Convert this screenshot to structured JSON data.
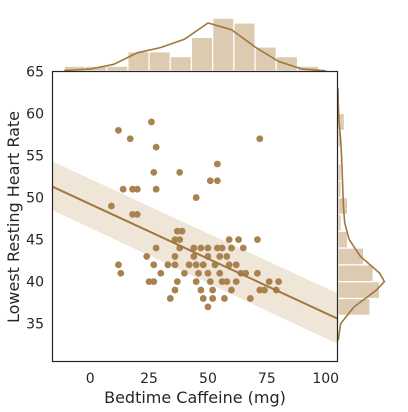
{
  "chart_data": {
    "type": "scatter",
    "kind": "jointplot with regression line, confidence band, marginal histograms and KDE curves",
    "xlabel": "Bedtime Caffeine (mg)",
    "ylabel": "Lowest Resting Heart Rate",
    "xlim": [
      -16,
      105
    ],
    "ylim": [
      30.5,
      65
    ],
    "xticks": [
      0,
      25,
      50,
      75,
      100
    ],
    "yticks": [
      35,
      40,
      45,
      50,
      55,
      60,
      65
    ],
    "grid": false,
    "colors": {
      "points": "#a8834f",
      "line": "#a0773f",
      "band": "#efe6d8",
      "hist": "#dccbb0",
      "axis": "#262626"
    },
    "points": [
      {
        "x": 12,
        "y": 58
      },
      {
        "x": 26,
        "y": 59
      },
      {
        "x": 17,
        "y": 57
      },
      {
        "x": 28,
        "y": 56
      },
      {
        "x": 72,
        "y": 57
      },
      {
        "x": 54,
        "y": 54
      },
      {
        "x": 54,
        "y": 52
      },
      {
        "x": 27,
        "y": 53
      },
      {
        "x": 38,
        "y": 53
      },
      {
        "x": 51,
        "y": 52
      },
      {
        "x": 14,
        "y": 51
      },
      {
        "x": 18,
        "y": 51
      },
      {
        "x": 20,
        "y": 51
      },
      {
        "x": 28,
        "y": 51
      },
      {
        "x": 45,
        "y": 50
      },
      {
        "x": 9,
        "y": 49
      },
      {
        "x": 18,
        "y": 48
      },
      {
        "x": 20,
        "y": 48
      },
      {
        "x": 37,
        "y": 46
      },
      {
        "x": 39,
        "y": 46
      },
      {
        "x": 36,
        "y": 45
      },
      {
        "x": 38,
        "y": 45
      },
      {
        "x": 59,
        "y": 45
      },
      {
        "x": 63,
        "y": 45
      },
      {
        "x": 71,
        "y": 45
      },
      {
        "x": 28,
        "y": 44
      },
      {
        "x": 38,
        "y": 44
      },
      {
        "x": 44,
        "y": 44
      },
      {
        "x": 47,
        "y": 44
      },
      {
        "x": 50,
        "y": 44
      },
      {
        "x": 54,
        "y": 44
      },
      {
        "x": 56,
        "y": 44
      },
      {
        "x": 60,
        "y": 44
      },
      {
        "x": 65,
        "y": 44
      },
      {
        "x": 24,
        "y": 43
      },
      {
        "x": 36,
        "y": 43
      },
      {
        "x": 44,
        "y": 43
      },
      {
        "x": 50,
        "y": 43
      },
      {
        "x": 55,
        "y": 43
      },
      {
        "x": 58,
        "y": 43
      },
      {
        "x": 27,
        "y": 42
      },
      {
        "x": 33,
        "y": 42
      },
      {
        "x": 36,
        "y": 42
      },
      {
        "x": 42,
        "y": 42
      },
      {
        "x": 45,
        "y": 42
      },
      {
        "x": 48,
        "y": 42
      },
      {
        "x": 53,
        "y": 42
      },
      {
        "x": 59,
        "y": 42
      },
      {
        "x": 62,
        "y": 42
      },
      {
        "x": 12,
        "y": 42
      },
      {
        "x": 13,
        "y": 41
      },
      {
        "x": 30,
        "y": 41
      },
      {
        "x": 40,
        "y": 41
      },
      {
        "x": 46,
        "y": 41
      },
      {
        "x": 50,
        "y": 41
      },
      {
        "x": 55,
        "y": 41
      },
      {
        "x": 64,
        "y": 41
      },
      {
        "x": 66,
        "y": 41
      },
      {
        "x": 71,
        "y": 41
      },
      {
        "x": 25,
        "y": 40
      },
      {
        "x": 27,
        "y": 40
      },
      {
        "x": 37,
        "y": 40
      },
      {
        "x": 45,
        "y": 40
      },
      {
        "x": 51,
        "y": 40
      },
      {
        "x": 56,
        "y": 40
      },
      {
        "x": 58,
        "y": 40
      },
      {
        "x": 62,
        "y": 40
      },
      {
        "x": 76,
        "y": 40
      },
      {
        "x": 36,
        "y": 39
      },
      {
        "x": 47,
        "y": 39
      },
      {
        "x": 52,
        "y": 39
      },
      {
        "x": 60,
        "y": 39
      },
      {
        "x": 72,
        "y": 39
      },
      {
        "x": 74,
        "y": 39
      },
      {
        "x": 79,
        "y": 39
      },
      {
        "x": 48,
        "y": 38
      },
      {
        "x": 52,
        "y": 38
      },
      {
        "x": 34,
        "y": 38
      },
      {
        "x": 50,
        "y": 37
      },
      {
        "x": 57,
        "y": 38
      },
      {
        "x": 80,
        "y": 40
      },
      {
        "x": 68,
        "y": 38
      }
    ],
    "regression": {
      "x": [
        -16,
        105
      ],
      "y": [
        51.3,
        35.6
      ],
      "band_lower": [
        48.5,
        32.6
      ],
      "band_upper": [
        54.3,
        38.6
      ]
    },
    "marginal_x": {
      "bin_edges": [
        -11,
        -2,
        7,
        16,
        25,
        34,
        43,
        52,
        61,
        70,
        79,
        88,
        97
      ],
      "counts": [
        1,
        1,
        1,
        4,
        4,
        3,
        7,
        11,
        10,
        5,
        3,
        1
      ],
      "kde_x": [
        -11,
        0,
        10,
        20,
        30,
        40,
        50,
        60,
        70,
        80,
        90,
        100
      ],
      "kde_y": [
        0.1,
        0.4,
        1.4,
        3.8,
        4.9,
        6.6,
        10.0,
        8.6,
        5.0,
        2.0,
        0.4,
        0.05
      ]
    },
    "marginal_y": {
      "bin_edges": [
        34,
        36,
        38,
        40,
        42,
        44,
        46,
        48,
        50,
        52,
        54,
        56,
        58,
        60
      ],
      "counts": [
        0,
        10,
        13,
        11,
        8,
        3,
        1,
        3,
        1,
        1,
        0,
        1,
        2
      ],
      "kde_y": [
        33,
        35,
        37,
        39,
        40,
        41,
        43,
        45,
        47,
        49,
        51,
        53,
        55,
        57,
        59,
        61,
        63
      ],
      "kde_x": [
        0.05,
        0.8,
        5,
        12,
        14.5,
        13,
        7,
        3.5,
        2.1,
        1.7,
        1.5,
        1.3,
        1.1,
        0.8,
        0.3,
        0.08,
        0.01
      ]
    }
  }
}
